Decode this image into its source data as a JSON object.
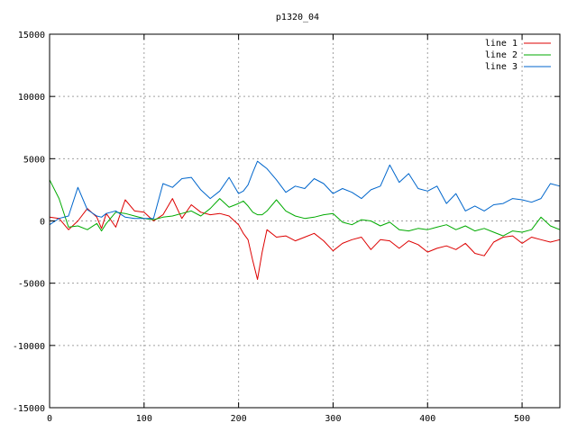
{
  "chart_data": {
    "type": "line",
    "title": "p1320_04",
    "xlabel": "",
    "ylabel": "",
    "xlim": [
      0,
      540
    ],
    "ylim": [
      -15000,
      15000
    ],
    "x_ticks": [
      0,
      100,
      200,
      300,
      400,
      500
    ],
    "y_ticks": [
      -15000,
      -10000,
      -5000,
      0,
      5000,
      10000,
      15000
    ],
    "x_tick_labels": [
      "0",
      "100",
      "200",
      "300",
      "400",
      "500"
    ],
    "y_tick_labels": [
      "-15000",
      "-10000",
      "-5000",
      "0",
      "5000",
      "10000",
      "15000"
    ],
    "grid": true,
    "legend_position": "top-right",
    "x": [
      0,
      10,
      20,
      30,
      40,
      50,
      55,
      60,
      70,
      80,
      90,
      100,
      110,
      120,
      130,
      140,
      150,
      160,
      170,
      180,
      190,
      200,
      205,
      210,
      215,
      220,
      225,
      230,
      240,
      250,
      260,
      270,
      280,
      290,
      300,
      310,
      320,
      330,
      340,
      350,
      360,
      370,
      380,
      390,
      400,
      410,
      420,
      430,
      440,
      450,
      460,
      470,
      480,
      490,
      500,
      510,
      520,
      530,
      540
    ],
    "series": [
      {
        "name": "line 1",
        "color": "#dd0000",
        "values": [
          300,
          200,
          -700,
          0,
          1000,
          300,
          -600,
          600,
          -500,
          1700,
          800,
          700,
          0,
          500,
          1800,
          200,
          1300,
          700,
          500,
          600,
          400,
          -300,
          -1000,
          -1500,
          -3200,
          -4700,
          -2500,
          -700,
          -1300,
          -1200,
          -1600,
          -1300,
          -1000,
          -1600,
          -2400,
          -1800,
          -1500,
          -1300,
          -2300,
          -1500,
          -1600,
          -2200,
          -1600,
          -1900,
          -2500,
          -2200,
          -2000,
          -2300,
          -1800,
          -2600,
          -2800,
          -1700,
          -1300,
          -1200,
          -1800,
          -1300,
          -1500,
          -1700,
          -1500
        ]
      },
      {
        "name": "line 2",
        "color": "#00aa00",
        "values": [
          3300,
          1800,
          -500,
          -400,
          -700,
          -200,
          -800,
          -200,
          700,
          600,
          400,
          200,
          100,
          300,
          400,
          600,
          800,
          400,
          1000,
          1800,
          1100,
          1400,
          1600,
          1200,
          700,
          500,
          500,
          800,
          1700,
          800,
          400,
          200,
          300,
          500,
          600,
          -100,
          -300,
          100,
          0,
          -400,
          -100,
          -700,
          -800,
          -600,
          -700,
          -500,
          -300,
          -700,
          -400,
          -800,
          -600,
          -900,
          -1200,
          -800,
          -900,
          -700,
          300,
          -400,
          -700
        ]
      },
      {
        "name": "line 3",
        "color": "#0066cc",
        "values": [
          -300,
          200,
          400,
          2700,
          900,
          400,
          300,
          600,
          800,
          300,
          200,
          200,
          200,
          3000,
          2700,
          3400,
          3500,
          2500,
          1800,
          2400,
          3500,
          2200,
          2400,
          2900,
          3900,
          4800,
          4500,
          4200,
          3300,
          2300,
          2800,
          2600,
          3400,
          3000,
          2200,
          2600,
          2300,
          1800,
          2500,
          2800,
          4500,
          3100,
          3800,
          2600,
          2400,
          2800,
          1400,
          2200,
          800,
          1200,
          800,
          1300,
          1400,
          1800,
          1700,
          1500,
          1800,
          3000,
          2800
        ]
      }
    ]
  }
}
